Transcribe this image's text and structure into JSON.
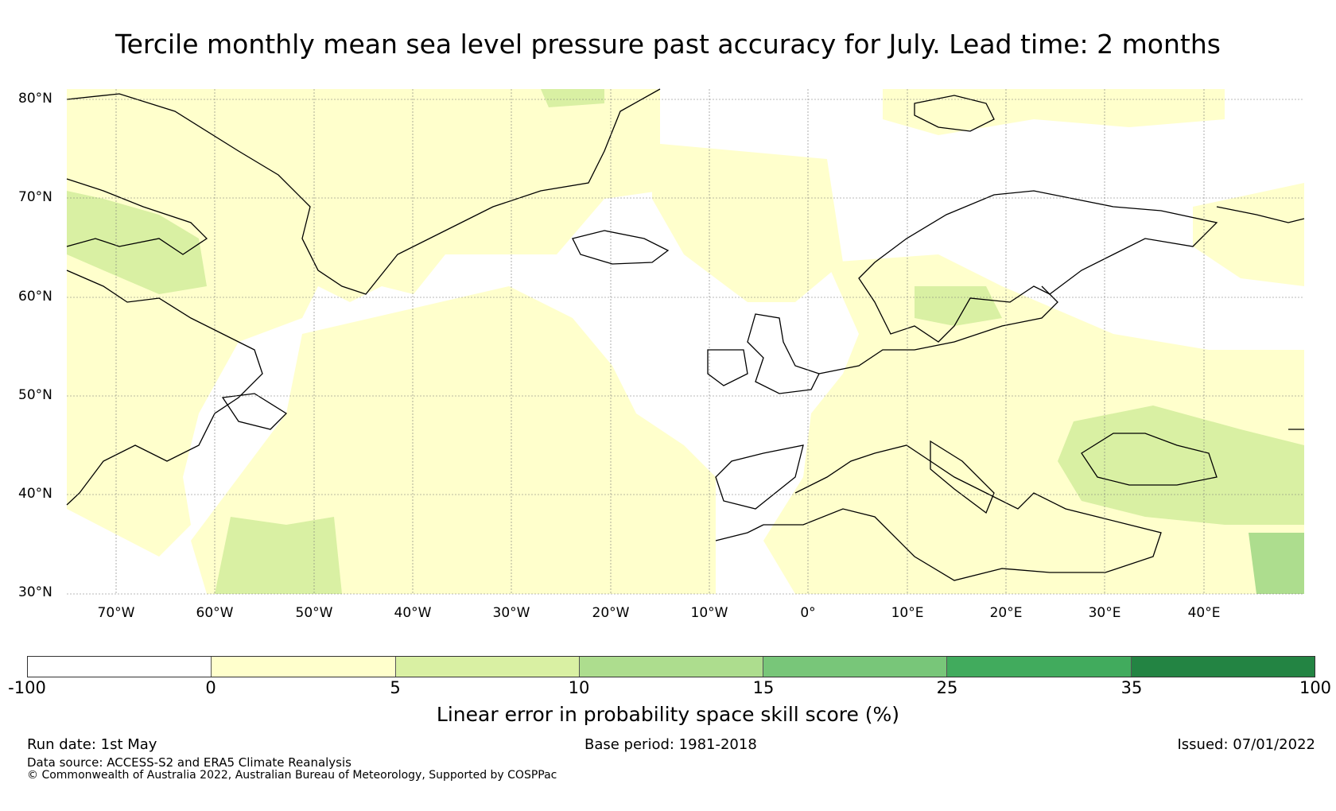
{
  "title": "Tercile monthly mean sea level pressure past accuracy for July. Lead time: 2 months",
  "map": {
    "lat_labels": [
      "80°N",
      "70°N",
      "60°N",
      "50°N",
      "40°N",
      "30°N"
    ],
    "lon_labels": [
      "70°W",
      "60°W",
      "50°W",
      "40°W",
      "30°W",
      "20°W",
      "10°W",
      "0°",
      "10°E",
      "20°E",
      "30°E",
      "40°E"
    ],
    "extent": {
      "lon": [
        -75,
        50
      ],
      "lat": [
        30,
        81
      ]
    },
    "dominant_class": "0 to 5",
    "higher_skill_region": "Black Sea / eastern Mediterranean"
  },
  "colorbar": {
    "ticks": [
      "-100",
      "0",
      "5",
      "10",
      "15",
      "25",
      "35",
      "100"
    ],
    "colors": [
      "#ffffff",
      "#ffffcc",
      "#d9f0a3",
      "#addd8e",
      "#78c679",
      "#41ab5d",
      "#238443"
    ],
    "label": "Linear error in probability space skill score (%)"
  },
  "footer": {
    "run_date": "Run date: 1st May",
    "base_period": "Base period: 1981-2018",
    "issued": "Issued: 07/01/2022",
    "data_source": "Data source: ACCESS-S2 and ERA5 Climate Reanalysis",
    "copyright": "© Commonwealth of Australia 2022, Australian Bureau of Meteorology, Supported by COSPPac"
  }
}
